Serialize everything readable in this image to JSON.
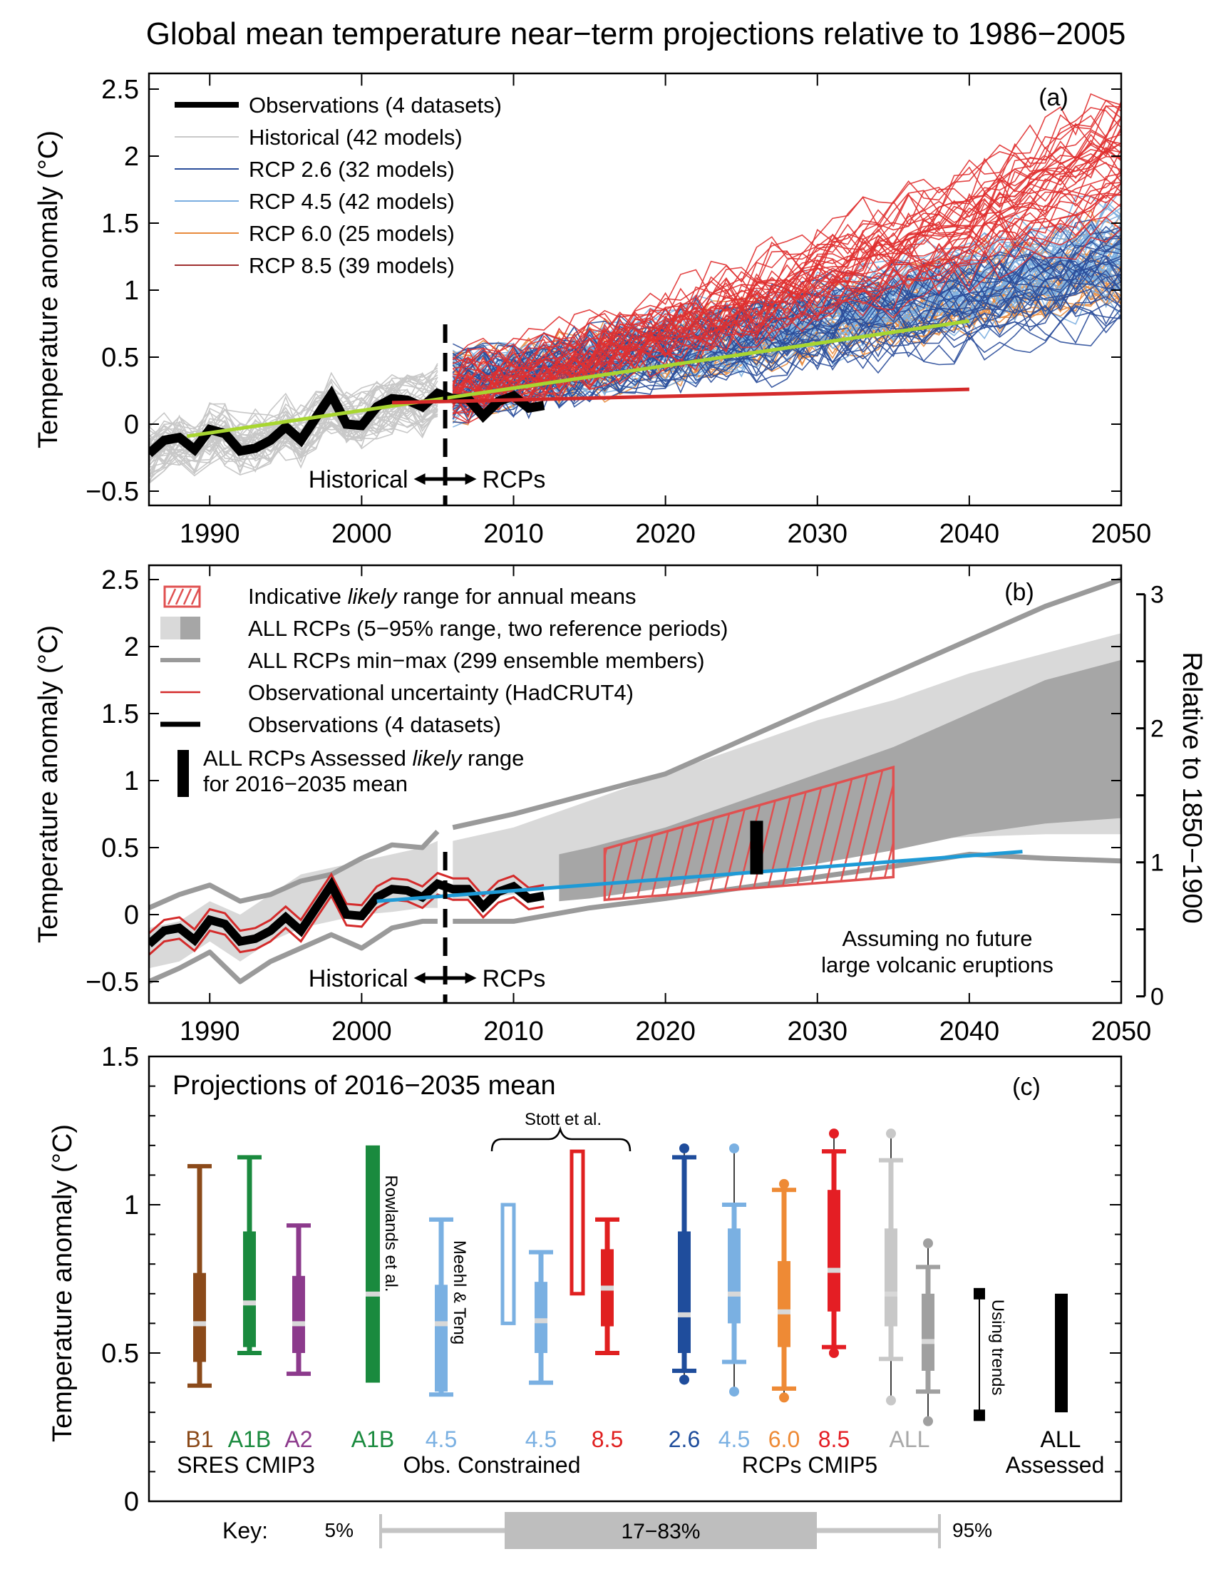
{
  "figure": {
    "title": "Global mean temperature near−term projections relative to 1986−2005",
    "ylabel": "Temperature anomaly  (°C)"
  },
  "chart_data": [
    {
      "id": "a",
      "type": "line",
      "panel_label": "(a)",
      "ylabel": "Temperature anomaly  (°C)",
      "xlim": [
        1986,
        2050
      ],
      "ylim": [
        -0.65,
        2.6
      ],
      "xticks": [
        1990,
        2000,
        2010,
        2020,
        2030,
        2040,
        2050
      ],
      "yticks": [
        -0.5,
        0,
        0.5,
        1,
        1.5,
        2,
        2.5
      ],
      "ytick_labels": [
        "−0.5",
        "0",
        "0.5",
        "1",
        "1.5",
        "2",
        "2.5"
      ],
      "legend": {
        "placement": "top-left",
        "entries": [
          {
            "label": "Observations (4 datasets)",
            "color": "#000000",
            "style": "thick"
          },
          {
            "label": "Historical (42 models)",
            "color": "#c8c8c8",
            "style": "thin"
          },
          {
            "label": "RCP 2.6 (32 models)",
            "color": "#2a4d9a",
            "style": "thin"
          },
          {
            "label": "RCP 4.5 (42 models)",
            "color": "#7aaee0",
            "style": "thin"
          },
          {
            "label": "RCP 6.0 (25 models)",
            "color": "#e88a3c",
            "style": "thin"
          },
          {
            "label": "RCP 8.5 (39 models)",
            "color": "#a03030",
            "style": "thin"
          }
        ]
      },
      "annotations": {
        "historical": "Historical",
        "rcps": "RCPs",
        "divider_year": 2005.5
      },
      "observations": {
        "years": [
          1986,
          1987,
          1988,
          1989,
          1990,
          1991,
          1992,
          1993,
          1994,
          1995,
          1996,
          1997,
          1998,
          1999,
          2000,
          2001,
          2002,
          2003,
          2004,
          2005,
          2006,
          2007,
          2008,
          2009,
          2010,
          2011,
          2012
        ],
        "values": [
          -0.22,
          -0.12,
          -0.1,
          -0.19,
          -0.04,
          -0.07,
          -0.2,
          -0.18,
          -0.12,
          -0.02,
          -0.12,
          0.05,
          0.22,
          0.0,
          -0.01,
          0.13,
          0.19,
          0.18,
          0.13,
          0.23,
          0.19,
          0.19,
          0.06,
          0.17,
          0.21,
          0.12,
          0.14
        ]
      },
      "ensemble_envelopes": [
        {
          "name": "Historical",
          "color": "#c8c8c8",
          "years": [
            1986,
            2005
          ],
          "lower": [
            -0.45,
            -0.05
          ],
          "upper": [
            0.05,
            0.5
          ]
        },
        {
          "name": "RCP 2.6",
          "color": "#2a4d9a",
          "years": [
            2006,
            2050
          ],
          "lower": [
            -0.05,
            0.45
          ],
          "upper": [
            0.6,
            1.55
          ]
        },
        {
          "name": "RCP 4.5",
          "color": "#7aaee0",
          "years": [
            2006,
            2050
          ],
          "lower": [
            -0.05,
            0.6
          ],
          "upper": [
            0.6,
            1.75
          ]
        },
        {
          "name": "RCP 6.0",
          "color": "#e88a3c",
          "years": [
            2006,
            2050
          ],
          "lower": [
            -0.05,
            0.55
          ],
          "upper": [
            0.6,
            1.6
          ]
        },
        {
          "name": "RCP 8.5",
          "color": "#e03030",
          "years": [
            2006,
            2050
          ],
          "lower": [
            0.0,
            0.9
          ],
          "upper": [
            0.65,
            2.5
          ]
        }
      ],
      "trend_lines": [
        {
          "name": "Historical trend",
          "color": "#a8d630",
          "years": [
            1988.5,
            2040
          ],
          "values": [
            -0.09,
            0.77
          ]
        },
        {
          "name": "Recent observed trend",
          "color": "#d42a2a",
          "years": [
            2002,
            2040
          ],
          "values": [
            0.16,
            0.26
          ]
        }
      ]
    },
    {
      "id": "b",
      "type": "area",
      "panel_label": "(b)",
      "ylabel": "Temperature anomaly  (°C)",
      "y2label": "Relative to 1850−1900",
      "xlim": [
        1986,
        2050
      ],
      "ylim": [
        -0.65,
        2.6
      ],
      "xticks": [
        1990,
        2000,
        2010,
        2020,
        2030,
        2040,
        2050
      ],
      "yticks": [
        -0.5,
        0,
        0.5,
        1,
        1.5,
        2,
        2.5
      ],
      "ytick_labels": [
        "−0.5",
        "0",
        "0.5",
        "1",
        "1.5",
        "2",
        "2.5"
      ],
      "y2ticks": [
        0,
        1,
        2,
        3
      ],
      "y2_offset": 0.61,
      "legend": {
        "placement": "top-left",
        "entries": [
          {
            "label_pre": "Indicative ",
            "label_italic": "likely",
            "label_post": " range for annual means",
            "type": "hatch",
            "color": "#e05050"
          },
          {
            "label_pre": "ALL RCPs (5−95% range, two reference periods)",
            "label_italic": "",
            "label_post": "",
            "type": "twotone",
            "colors": [
              "#d9d9d9",
              "#a6a6a6"
            ]
          },
          {
            "label_pre": "ALL RCPs min−max (299 ensemble members)",
            "label_italic": "",
            "label_post": "",
            "type": "line",
            "color": "#999999"
          },
          {
            "label_pre": "Observational uncertainty (HadCRUT4)",
            "label_italic": "",
            "label_post": "",
            "type": "line",
            "color": "#d42a2a"
          },
          {
            "label_pre": "Observations (4 datasets)",
            "label_italic": "",
            "label_post": "",
            "type": "thick",
            "color": "#000000"
          }
        ],
        "assessed": {
          "line1_pre": "ALL RCPs Assessed ",
          "line1_italic": "likely",
          "line1_post": " range",
          "line2": "for 2016−2035 mean"
        }
      },
      "note": [
        "Assuming no future",
        "large volcanic eruptions"
      ],
      "annotations": {
        "historical": "Historical",
        "rcps": "RCPs",
        "divider_year": 2005.5
      },
      "light_band": {
        "years": [
          1986,
          1988,
          1990,
          1992,
          1994,
          1996,
          1998,
          2000,
          2002,
          2004,
          2005,
          2006,
          2010,
          2015,
          2020,
          2025,
          2030,
          2035,
          2040,
          2045,
          2050
        ],
        "lower": [
          -0.4,
          -0.35,
          -0.2,
          -0.35,
          -0.2,
          -0.1,
          -0.05,
          0.0,
          0.02,
          0.05,
          0.05,
          0.1,
          0.15,
          0.25,
          0.35,
          0.45,
          0.5,
          0.55,
          0.58,
          0.6,
          0.6
        ],
        "upper": [
          -0.1,
          -0.05,
          0.1,
          0.0,
          0.15,
          0.3,
          0.35,
          0.4,
          0.45,
          0.5,
          0.55,
          0.55,
          0.65,
          0.85,
          1.05,
          1.25,
          1.45,
          1.6,
          1.8,
          1.95,
          2.1
        ]
      },
      "dark_band": {
        "years": [
          2013,
          2015,
          2020,
          2025,
          2030,
          2035,
          2040,
          2045,
          2050
        ],
        "lower": [
          0.1,
          0.12,
          0.2,
          0.3,
          0.38,
          0.48,
          0.6,
          0.68,
          0.72
        ],
        "upper": [
          0.45,
          0.5,
          0.65,
          0.85,
          1.05,
          1.25,
          1.5,
          1.75,
          1.9
        ]
      },
      "minmax": {
        "lower": {
          "years": [
            1986,
            1988,
            1990,
            1992,
            1994,
            1996,
            1998,
            2000,
            2002,
            2004,
            2005
          ],
          "values": [
            -0.5,
            -0.4,
            -0.28,
            -0.5,
            -0.35,
            -0.25,
            -0.15,
            -0.25,
            -0.1,
            -0.05,
            -0.05
          ]
        },
        "upper": {
          "years": [
            1986,
            1988,
            1990,
            1992,
            1994,
            1996,
            1998,
            2000,
            2002,
            2004,
            2005
          ],
          "values": [
            0.05,
            0.15,
            0.22,
            0.1,
            0.15,
            0.25,
            0.3,
            0.42,
            0.52,
            0.5,
            0.62
          ]
        },
        "lower_future": {
          "years": [
            2006,
            2010,
            2015,
            2020,
            2025,
            2030,
            2035,
            2040,
            2045,
            2050
          ],
          "values": [
            -0.05,
            -0.05,
            0.05,
            0.12,
            0.2,
            0.28,
            0.36,
            0.45,
            0.42,
            0.4
          ]
        },
        "upper_future": {
          "years": [
            2006,
            2010,
            2015,
            2020,
            2025,
            2030,
            2035,
            2040,
            2045,
            2050
          ],
          "values": [
            0.65,
            0.75,
            0.9,
            1.05,
            1.3,
            1.55,
            1.8,
            2.05,
            2.3,
            2.5
          ]
        }
      },
      "observations": {
        "years": [
          1986,
          1987,
          1988,
          1989,
          1990,
          1991,
          1992,
          1993,
          1994,
          1995,
          1996,
          1997,
          1998,
          1999,
          2000,
          2001,
          2002,
          2003,
          2004,
          2005,
          2006,
          2007,
          2008,
          2009,
          2010,
          2011,
          2012
        ],
        "values": [
          -0.22,
          -0.12,
          -0.1,
          -0.19,
          -0.04,
          -0.07,
          -0.2,
          -0.18,
          -0.12,
          -0.02,
          -0.12,
          0.05,
          0.22,
          0.0,
          -0.01,
          0.13,
          0.19,
          0.18,
          0.13,
          0.23,
          0.19,
          0.19,
          0.06,
          0.17,
          0.21,
          0.12,
          0.14
        ],
        "uncertainty": 0.08
      },
      "likely_range_hatch": {
        "years": [
          2016,
          2035
        ],
        "lower": [
          0.11,
          0.28
        ],
        "upper": [
          0.49,
          1.1
        ]
      },
      "assessed_bar": {
        "year": 2026,
        "lower": 0.3,
        "upper": 0.7
      },
      "trend_line": {
        "color": "#1e9ad6",
        "years": [
          2001,
          2043.5
        ],
        "values": [
          0.1,
          0.47
        ]
      }
    },
    {
      "id": "c",
      "type": "box",
      "panel_label": "(c)",
      "title": "Projections of 2016−2035 mean",
      "ylabel": "Temperature anomaly  (°C)",
      "ylim": [
        0,
        1.5
      ],
      "yticks": [
        0,
        0.5,
        1,
        1.5
      ],
      "ytick_labels": [
        "0",
        "0.5",
        "1",
        "1.5"
      ],
      "groups": [
        {
          "label": "SRES CMIP3"
        },
        {
          "label": "Obs. Constrained"
        },
        {
          "label": "RCPs CMIP5"
        },
        {
          "label": "ALL\nAssessed"
        }
      ],
      "bracket_label": "Stott et al.",
      "boxes": [
        {
          "label": "B1",
          "color": "#8b4a1a",
          "p5": 0.39,
          "p17": 0.47,
          "median": 0.6,
          "p83": 0.77,
          "p95": 1.13
        },
        {
          "label": "A1B",
          "color": "#1a8a3e",
          "p5": 0.5,
          "p17": 0.52,
          "median": 0.67,
          "p83": 0.91,
          "p95": 1.16
        },
        {
          "label": "A2",
          "color": "#8c3a8c",
          "p5": 0.43,
          "p17": 0.5,
          "median": 0.6,
          "p83": 0.76,
          "p95": 0.93
        },
        {
          "label": "A1B",
          "color": "#1a8a3e",
          "bar_only": true,
          "lower": 0.4,
          "upper": 1.2,
          "median": 0.7,
          "side_note": "Rowlands et al."
        },
        {
          "label": "4.5",
          "color": "#7ab0e2",
          "p5": 0.36,
          "p17": 0.37,
          "median": 0.6,
          "p83": 0.73,
          "p95": 0.95,
          "side_note": "Meehl & Teng"
        },
        {
          "label": "",
          "color": "#7ab0e2",
          "open": true,
          "lower": 0.6,
          "upper": 1.0
        },
        {
          "label": "4.5",
          "color": "#7ab0e2",
          "p5": 0.4,
          "p17": 0.5,
          "median": 0.61,
          "p83": 0.74,
          "p95": 0.84
        },
        {
          "label": "",
          "color": "#e02020",
          "open": true,
          "lower": 0.7,
          "upper": 1.18
        },
        {
          "label": "8.5",
          "color": "#e02020",
          "p5": 0.5,
          "p17": 0.59,
          "median": 0.72,
          "p83": 0.85,
          "p95": 0.95
        },
        {
          "label": "2.6",
          "color": "#1f4d9c",
          "min": 0.41,
          "p5": 0.44,
          "p17": 0.5,
          "median": 0.63,
          "p83": 0.91,
          "p95": 1.16,
          "max": 1.19
        },
        {
          "label": "4.5",
          "color": "#7ab0e2",
          "min": 0.37,
          "p5": 0.47,
          "p17": 0.6,
          "median": 0.7,
          "p83": 0.92,
          "p95": 1.0,
          "max": 1.19
        },
        {
          "label": "6.0",
          "color": "#ee8a35",
          "min": 0.35,
          "p5": 0.38,
          "p17": 0.52,
          "median": 0.64,
          "p83": 0.81,
          "p95": 1.05,
          "max": 1.07
        },
        {
          "label": "8.5",
          "color": "#e41e24",
          "min": 0.5,
          "p5": 0.52,
          "p17": 0.64,
          "median": 0.78,
          "p83": 1.05,
          "p95": 1.18,
          "max": 1.24
        },
        {
          "label": "ALL",
          "color": "#c8c8c8",
          "min": 0.34,
          "p5": 0.48,
          "p17": 0.59,
          "median": 0.7,
          "p83": 0.92,
          "p95": 1.15,
          "max": 1.24
        },
        {
          "label": "",
          "color": "#a0a0a0",
          "min": 0.27,
          "p5": 0.37,
          "p17": 0.44,
          "median": 0.54,
          "p83": 0.7,
          "p95": 0.79,
          "max": 0.87
        },
        {
          "label": "",
          "color": "#000000",
          "trend": true,
          "lower": 0.29,
          "upper": 0.7,
          "side_note": "Using trends"
        },
        {
          "label": "",
          "color": "#000000",
          "assessed": true,
          "lower": 0.3,
          "upper": 0.7
        }
      ],
      "group_labels": {
        "sres": "SRES CMIP3",
        "obs": "Obs. Constrained",
        "rcps": "RCPs CMIP5",
        "all_label": "ALL",
        "assessed": "Assessed"
      },
      "key": {
        "label": "Key:",
        "p5": "5%",
        "mid": "17−83%",
        "p95": "95%"
      }
    }
  ]
}
